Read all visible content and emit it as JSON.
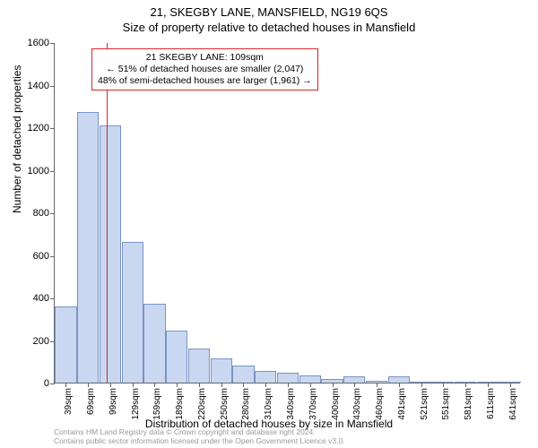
{
  "titles": {
    "line1": "21, SKEGBY LANE, MANSFIELD, NG19 6QS",
    "line2": "Size of property relative to detached houses in Mansfield"
  },
  "axes": {
    "y_title": "Number of detached properties",
    "x_title": "Distribution of detached houses by size in Mansfield",
    "ylim": [
      0,
      1600
    ],
    "yticks": [
      0,
      200,
      400,
      600,
      800,
      1000,
      1200,
      1400,
      1600
    ],
    "xticks": [
      "39sqm",
      "69sqm",
      "99sqm",
      "129sqm",
      "159sqm",
      "189sqm",
      "220sqm",
      "250sqm",
      "280sqm",
      "310sqm",
      "340sqm",
      "370sqm",
      "400sqm",
      "430sqm",
      "460sqm",
      "491sqm",
      "521sqm",
      "551sqm",
      "581sqm",
      "611sqm",
      "641sqm"
    ]
  },
  "chart": {
    "type": "histogram",
    "categories": [
      "39sqm",
      "69sqm",
      "99sqm",
      "129sqm",
      "159sqm",
      "189sqm",
      "220sqm",
      "250sqm",
      "280sqm",
      "310sqm",
      "340sqm",
      "370sqm",
      "400sqm",
      "430sqm",
      "460sqm",
      "491sqm",
      "521sqm",
      "551sqm",
      "581sqm",
      "611sqm",
      "641sqm"
    ],
    "values": [
      360,
      1270,
      1210,
      660,
      370,
      245,
      160,
      115,
      80,
      55,
      45,
      35,
      18,
      30,
      8,
      28,
      6,
      2,
      1,
      2,
      1
    ],
    "bar_fill": "#c9d8f0",
    "bar_stroke": "#7a93c4",
    "background_color": "#ffffff",
    "axis_color": "#666666"
  },
  "marker": {
    "x_category_index": 2.35,
    "color": "#d62728",
    "callout": {
      "line1": "21 SKEGBY LANE: 109sqm",
      "line2": "← 51% of detached houses are smaller (2,047)",
      "line3": "48% of semi-detached houses are larger (1,961) →",
      "border_color": "#d62728"
    }
  },
  "footer": {
    "line1": "Contains HM Land Registry data © Crown copyright and database right 2024.",
    "line2": "Contains public sector information licensed under the Open Government Licence v3.0."
  },
  "style": {
    "title_fontsize": 13,
    "axis_title_fontsize": 12,
    "tick_fontsize": 11,
    "xtick_fontsize": 10,
    "callout_fontsize": 10.5,
    "footer_fontsize": 8.5,
    "footer_color": "#999999"
  }
}
